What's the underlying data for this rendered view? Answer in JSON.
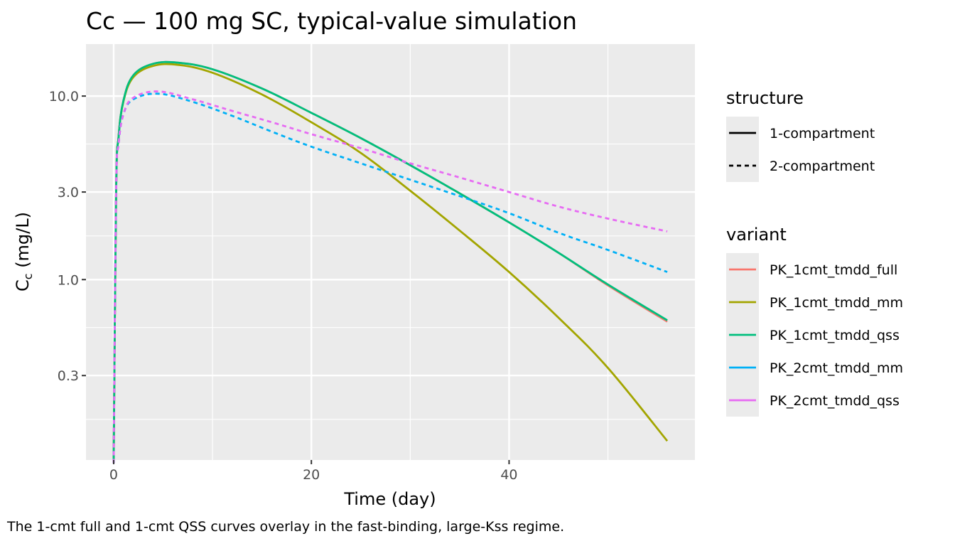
{
  "chart_data": {
    "type": "line",
    "title": "Cc — 100 mg SC, typical-value simulation",
    "xlabel": "Time (day)",
    "ylabel_main": "C",
    "ylabel_sub": "c",
    "ylabel_unit": " (mg/L)",
    "caption": "The 1-cmt full and 1-cmt QSS curves overlay in the fast-binding, large-Kss regime.",
    "x_scale": "linear",
    "y_scale": "log10",
    "xlim": [
      -2.8,
      58.8
    ],
    "ylim": [
      0.104,
      19.2
    ],
    "x_ticks": [
      0,
      20,
      40
    ],
    "x_tick_labels": [
      "0",
      "20",
      "40"
    ],
    "y_ticks": [
      0.3,
      1.0,
      3.0,
      10.0
    ],
    "y_tick_labels": [
      "0.3",
      "1.0",
      "3.0",
      "10.0"
    ],
    "y_minor_ticks": [
      0.173,
      0.548,
      1.73,
      5.48
    ],
    "x_minor_ticks": [
      10,
      30,
      50
    ],
    "grid": true,
    "legend": {
      "placement": "right",
      "structure": {
        "title": "structure",
        "entries": [
          {
            "label": "1-compartment",
            "linetype": "solid"
          },
          {
            "label": "2-compartment",
            "linetype": "dashed"
          }
        ]
      },
      "variant": {
        "title": "variant",
        "entries": [
          {
            "label": "PK_1cmt_tmdd_full",
            "color": "#F8766D"
          },
          {
            "label": "PK_1cmt_tmdd_mm",
            "color": "#A3A500"
          },
          {
            "label": "PK_1cmt_tmdd_qss",
            "color": "#00BF7D"
          },
          {
            "label": "PK_2cmt_tmdd_mm",
            "color": "#00B0F6"
          },
          {
            "label": "PK_2cmt_tmdd_qss",
            "color": "#E76BF3"
          }
        ]
      }
    },
    "series": [
      {
        "name": "PK_1cmt_tmdd_full",
        "structure": "1-compartment",
        "color": "#F8766D",
        "linetype": "solid",
        "x": [
          0,
          0.25,
          0.5,
          1,
          2,
          4,
          6.5,
          10,
          15,
          20,
          25,
          30,
          35,
          40,
          45,
          50,
          56
        ],
        "y": [
          0.1,
          3.0,
          6.0,
          9.5,
          13.0,
          15.0,
          15.2,
          14.0,
          11.0,
          8.1,
          5.9,
          4.2,
          2.95,
          2.05,
          1.4,
          0.93,
          0.59
        ]
      },
      {
        "name": "PK_1cmt_tmdd_mm",
        "structure": "1-compartment",
        "color": "#A3A500",
        "linetype": "solid",
        "x": [
          0,
          0.25,
          0.5,
          1,
          2,
          4,
          6.5,
          10,
          15,
          20,
          25,
          30,
          35,
          40,
          45,
          50,
          56
        ],
        "y": [
          0.1,
          3.0,
          6.0,
          9.4,
          12.7,
          14.6,
          14.8,
          13.4,
          10.2,
          7.2,
          4.9,
          3.05,
          1.85,
          1.1,
          0.62,
          0.33,
          0.132
        ]
      },
      {
        "name": "PK_1cmt_tmdd_qss",
        "structure": "1-compartment",
        "color": "#00BF7D",
        "linetype": "solid",
        "x": [
          0,
          0.25,
          0.5,
          1,
          2,
          4,
          6.5,
          10,
          15,
          20,
          25,
          30,
          35,
          40,
          45,
          50,
          56
        ],
        "y": [
          0.1,
          3.0,
          6.0,
          9.5,
          13.0,
          15.0,
          15.2,
          14.0,
          11.0,
          8.1,
          5.9,
          4.2,
          2.95,
          2.05,
          1.4,
          0.94,
          0.6
        ]
      },
      {
        "name": "PK_2cmt_tmdd_mm",
        "structure": "2-compartment",
        "color": "#00B0F6",
        "linetype": "dashed",
        "x": [
          0,
          0.25,
          0.5,
          1,
          2,
          4.5,
          8,
          12,
          16,
          20,
          25,
          30,
          35,
          40,
          45,
          50,
          56
        ],
        "y": [
          0.1,
          3.0,
          5.5,
          8.0,
          9.6,
          10.3,
          9.3,
          7.8,
          6.4,
          5.3,
          4.3,
          3.5,
          2.85,
          2.3,
          1.8,
          1.45,
          1.1
        ]
      },
      {
        "name": "PK_2cmt_tmdd_qss",
        "structure": "2-compartment",
        "color": "#E76BF3",
        "linetype": "dashed",
        "x": [
          0,
          0.25,
          0.5,
          1,
          2,
          4.5,
          8,
          12,
          16,
          20,
          25,
          30,
          35,
          40,
          45,
          50,
          56
        ],
        "y": [
          0.1,
          3.0,
          5.5,
          8.0,
          9.8,
          10.6,
          9.6,
          8.3,
          7.2,
          6.2,
          5.2,
          4.3,
          3.6,
          3.0,
          2.5,
          2.15,
          1.83
        ]
      }
    ]
  }
}
